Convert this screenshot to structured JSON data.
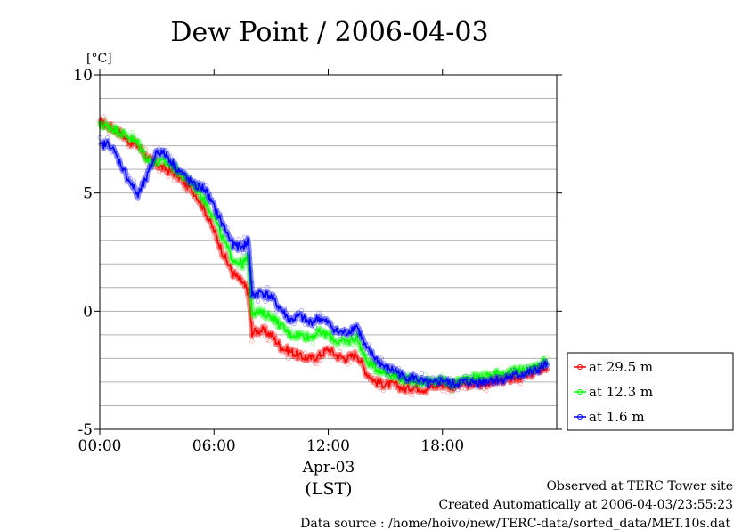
{
  "chart_data": {
    "type": "line",
    "title": "Dew Point / 2006-04-03",
    "ylabel": "[°C]",
    "ylim": [
      -5,
      10
    ],
    "y_ticks": [
      10,
      5,
      0,
      -5
    ],
    "grid": true,
    "x_ticks": [
      {
        "hour": 0,
        "label": "00:00"
      },
      {
        "hour": 6,
        "label": "06:00"
      },
      {
        "hour": 12,
        "label": "12:00"
      },
      {
        "hour": 18,
        "label": "18:00"
      }
    ],
    "xlim_hours": [
      0,
      24
    ],
    "x_date_label": "Apr-03",
    "x_zone_label": "(LST)",
    "legend_position": "right",
    "series": [
      {
        "name": "at 29.5 m",
        "color": "#ff0000",
        "points": [
          [
            0.0,
            8.0
          ],
          [
            0.5,
            7.8
          ],
          [
            1.0,
            7.6
          ],
          [
            1.5,
            7.2
          ],
          [
            2.0,
            7.0
          ],
          [
            2.5,
            6.5
          ],
          [
            3.0,
            6.2
          ],
          [
            3.5,
            6.0
          ],
          [
            4.0,
            5.8
          ],
          [
            4.5,
            5.4
          ],
          [
            5.0,
            5.0
          ],
          [
            5.5,
            4.3
          ],
          [
            6.0,
            3.4
          ],
          [
            6.5,
            2.4
          ],
          [
            7.0,
            1.6
          ],
          [
            7.5,
            1.2
          ],
          [
            7.8,
            0.8
          ],
          [
            8.0,
            -0.9
          ],
          [
            8.5,
            -0.8
          ],
          [
            9.0,
            -1.0
          ],
          [
            9.5,
            -1.5
          ],
          [
            10.0,
            -1.7
          ],
          [
            10.5,
            -1.9
          ],
          [
            11.0,
            -2.0
          ],
          [
            11.5,
            -1.9
          ],
          [
            12.0,
            -1.6
          ],
          [
            12.5,
            -1.9
          ],
          [
            13.0,
            -2.0
          ],
          [
            13.5,
            -1.8
          ],
          [
            14.0,
            -2.6
          ],
          [
            14.5,
            -3.0
          ],
          [
            15.0,
            -3.1
          ],
          [
            15.5,
            -3.1
          ],
          [
            16.0,
            -3.3
          ],
          [
            16.5,
            -3.2
          ],
          [
            17.0,
            -3.3
          ],
          [
            17.5,
            -3.2
          ],
          [
            18.0,
            -3.1
          ],
          [
            18.5,
            -3.2
          ],
          [
            19.0,
            -3.1
          ],
          [
            19.5,
            -3.1
          ],
          [
            20.0,
            -3.1
          ],
          [
            20.5,
            -3.0
          ],
          [
            21.0,
            -2.9
          ],
          [
            21.5,
            -2.9
          ],
          [
            22.0,
            -2.8
          ],
          [
            22.5,
            -2.7
          ],
          [
            23.0,
            -2.5
          ],
          [
            23.5,
            -2.4
          ]
        ]
      },
      {
        "name": "at 12.3 m",
        "color": "#00ff00",
        "points": [
          [
            0.0,
            7.9
          ],
          [
            0.5,
            7.8
          ],
          [
            1.0,
            7.6
          ],
          [
            1.5,
            7.4
          ],
          [
            2.0,
            7.1
          ],
          [
            2.5,
            6.4
          ],
          [
            3.0,
            6.3
          ],
          [
            3.5,
            6.3
          ],
          [
            4.0,
            6.0
          ],
          [
            4.5,
            5.6
          ],
          [
            5.0,
            5.3
          ],
          [
            5.5,
            4.7
          ],
          [
            6.0,
            4.0
          ],
          [
            6.5,
            3.0
          ],
          [
            7.0,
            2.2
          ],
          [
            7.5,
            2.0
          ],
          [
            7.8,
            2.3
          ],
          [
            8.0,
            0.0
          ],
          [
            8.5,
            -0.1
          ],
          [
            9.0,
            -0.2
          ],
          [
            9.5,
            -0.6
          ],
          [
            10.0,
            -1.0
          ],
          [
            10.5,
            -1.0
          ],
          [
            11.0,
            -1.1
          ],
          [
            11.5,
            -0.9
          ],
          [
            12.0,
            -1.0
          ],
          [
            12.5,
            -1.3
          ],
          [
            13.0,
            -1.3
          ],
          [
            13.5,
            -1.1
          ],
          [
            14.0,
            -2.1
          ],
          [
            14.5,
            -2.4
          ],
          [
            15.0,
            -2.6
          ],
          [
            15.5,
            -2.7
          ],
          [
            16.0,
            -2.9
          ],
          [
            16.5,
            -2.9
          ],
          [
            17.0,
            -3.0
          ],
          [
            17.5,
            -3.0
          ],
          [
            18.0,
            -2.9
          ],
          [
            18.5,
            -3.1
          ],
          [
            19.0,
            -2.9
          ],
          [
            19.5,
            -2.8
          ],
          [
            20.0,
            -2.8
          ],
          [
            20.5,
            -2.7
          ],
          [
            21.0,
            -2.6
          ],
          [
            21.5,
            -2.6
          ],
          [
            22.0,
            -2.5
          ],
          [
            22.5,
            -2.5
          ],
          [
            23.0,
            -2.3
          ],
          [
            23.5,
            -2.1
          ]
        ]
      },
      {
        "name": "at 1.6 m",
        "color": "#0000ff",
        "points": [
          [
            0.0,
            7.0
          ],
          [
            0.5,
            7.1
          ],
          [
            1.0,
            6.4
          ],
          [
            1.5,
            5.6
          ],
          [
            2.0,
            4.9
          ],
          [
            2.5,
            5.7
          ],
          [
            3.0,
            6.8
          ],
          [
            3.5,
            6.6
          ],
          [
            4.0,
            6.1
          ],
          [
            4.5,
            5.7
          ],
          [
            5.0,
            5.3
          ],
          [
            5.5,
            5.2
          ],
          [
            6.0,
            4.4
          ],
          [
            6.5,
            3.6
          ],
          [
            7.0,
            2.8
          ],
          [
            7.5,
            2.7
          ],
          [
            7.8,
            3.0
          ],
          [
            8.0,
            0.7
          ],
          [
            8.5,
            0.8
          ],
          [
            9.0,
            0.6
          ],
          [
            9.5,
            0.1
          ],
          [
            10.0,
            -0.4
          ],
          [
            10.5,
            -0.2
          ],
          [
            11.0,
            -0.5
          ],
          [
            11.5,
            -0.3
          ],
          [
            12.0,
            -0.5
          ],
          [
            12.5,
            -0.9
          ],
          [
            13.0,
            -0.9
          ],
          [
            13.5,
            -0.6
          ],
          [
            14.0,
            -1.6
          ],
          [
            14.5,
            -2.0
          ],
          [
            15.0,
            -2.4
          ],
          [
            15.5,
            -2.5
          ],
          [
            16.0,
            -2.8
          ],
          [
            16.5,
            -2.8
          ],
          [
            17.0,
            -3.0
          ],
          [
            17.5,
            -3.1
          ],
          [
            18.0,
            -2.9
          ],
          [
            18.5,
            -3.1
          ],
          [
            19.0,
            -3.0
          ],
          [
            19.5,
            -3.0
          ],
          [
            20.0,
            -3.0
          ],
          [
            20.5,
            -2.9
          ],
          [
            21.0,
            -2.9
          ],
          [
            21.5,
            -2.8
          ],
          [
            22.0,
            -2.7
          ],
          [
            22.5,
            -2.6
          ],
          [
            23.0,
            -2.5
          ],
          [
            23.5,
            -2.2
          ]
        ]
      }
    ]
  },
  "footer": {
    "observed": "Observed at TERC Tower site",
    "created": "Created Automatically at 2006-04-03/23:55:23",
    "source": "Data source : /home/hoivo/new/TERC-data/sorted_data/MET.10s.dat"
  }
}
